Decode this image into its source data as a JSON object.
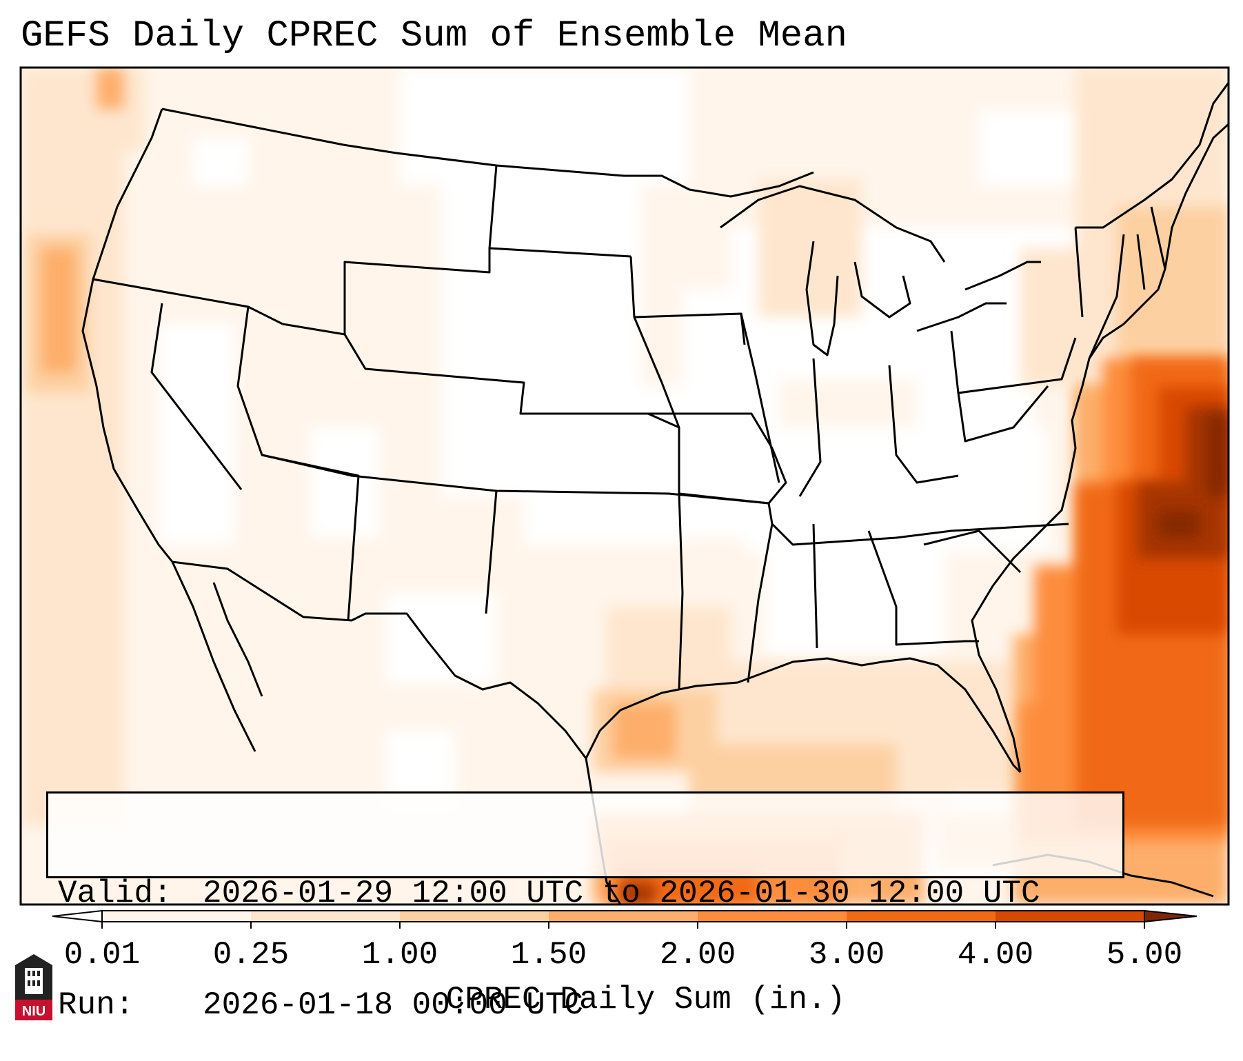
{
  "title": "GEFS Daily CPREC Sum of Ensemble Mean",
  "info": {
    "valid_label": "Valid:",
    "valid_value": "2026-01-29 12:00 UTC to 2026-01-30 12:00 UTC",
    "run_label": "Run:",
    "run_value": "2026-01-18 00:00 UTC"
  },
  "colorbar": {
    "label": "CPREC Daily Sum (in.)",
    "ticks": [
      "0.01",
      "0.25",
      "1.00",
      "1.50",
      "2.00",
      "3.00",
      "4.00",
      "5.00"
    ],
    "colors": [
      "#fff5eb",
      "#fee6ce",
      "#fdd0a2",
      "#fdae6b",
      "#fd8d3c",
      "#f16913",
      "#d94801",
      "#a63603"
    ],
    "under_color": "#ffffff",
    "over_color": "#7f2704",
    "extend": "both"
  },
  "map": {
    "region": "Contiguous United States, Gulf of Mexico and western Atlantic",
    "borders": "state boundaries and coastlines in black"
  },
  "logo": {
    "text": "NIU",
    "icon": "university-tower-logo",
    "color": "#c8102e"
  }
}
